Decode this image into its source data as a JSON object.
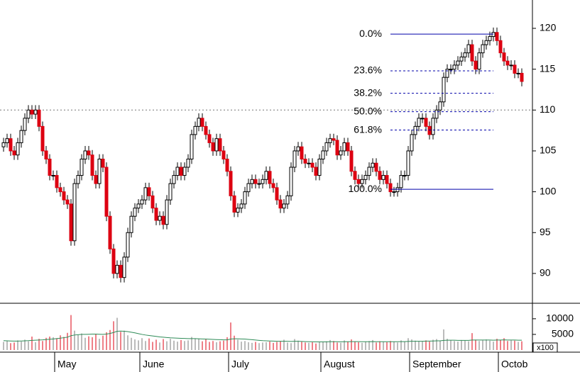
{
  "chart_data": {
    "type": "candlestick",
    "open": [
      105.5,
      106,
      106.5,
      105,
      104.5,
      106,
      107.5,
      109,
      110,
      109.5,
      110,
      108,
      105,
      104,
      102,
      102,
      100.5,
      100,
      99,
      98.5,
      94,
      101,
      102,
      104,
      105,
      104.5,
      102,
      101,
      104,
      103,
      97,
      93,
      90,
      91,
      89.5,
      92,
      95,
      97,
      98,
      98.5,
      99,
      100.5,
      99.5,
      98,
      96.5,
      97,
      96,
      99,
      101,
      102,
      103,
      102,
      103,
      104,
      107,
      108,
      109,
      108,
      107,
      106,
      105,
      106.5,
      105,
      104,
      102.5,
      99.5,
      97.5,
      98,
      98.5,
      100,
      101,
      101.5,
      101,
      101,
      101.5,
      102.5,
      101,
      100.5,
      99,
      98,
      98.5,
      99.5,
      103,
      105,
      105.5,
      104,
      103.5,
      103.5,
      103,
      102,
      104,
      105,
      106,
      106.5,
      106.3,
      104.5,
      105,
      106,
      105,
      102.5,
      101.5,
      101,
      101.5,
      102,
      103,
      103.5,
      102.5,
      101.5,
      102,
      101,
      100,
      100,
      100.5,
      102,
      102,
      105,
      107,
      108,
      109,
      109,
      108,
      107,
      109,
      110,
      111,
      114,
      115,
      115,
      115.5,
      116,
      116.5,
      117,
      118,
      116,
      115,
      117,
      118,
      118.5,
      119,
      119.5,
      118.5,
      117,
      116,
      115.5,
      115.5,
      114.5,
      114.5
    ],
    "high": [
      106.6,
      107.1,
      107.1,
      105.6,
      106.6,
      108.1,
      109.6,
      110.6,
      110.6,
      110.6,
      110.6,
      108.6,
      105.6,
      104.6,
      102.6,
      102.6,
      101.1,
      100.6,
      99.6,
      99.1,
      101.6,
      102.6,
      104.6,
      105.6,
      105.6,
      105.1,
      102.6,
      104.6,
      104.6,
      103.6,
      97.6,
      93.6,
      91.6,
      91.6,
      92.6,
      95.6,
      97.6,
      98.6,
      99.1,
      99.6,
      101.1,
      101.1,
      100.1,
      98.6,
      97.6,
      97.6,
      99.6,
      101.6,
      102.6,
      103.6,
      103.6,
      103.6,
      104.6,
      107.6,
      108.6,
      109.6,
      109.6,
      108.6,
      107.6,
      106.6,
      107.1,
      107.1,
      105.6,
      104.6,
      103.1,
      100.1,
      98.6,
      99.1,
      100.6,
      101.6,
      102.1,
      102.1,
      101.6,
      102.1,
      103.1,
      103.1,
      101.6,
      101.1,
      99.6,
      99.1,
      100.1,
      103.6,
      105.6,
      106.1,
      106.1,
      104.6,
      104.1,
      104.1,
      103.6,
      104.6,
      105.6,
      106.6,
      107.1,
      107.1,
      106.9,
      105.6,
      106.6,
      106.6,
      105.6,
      103.1,
      102.1,
      102.1,
      102.6,
      103.6,
      104.1,
      104.1,
      103.1,
      102.6,
      102.6,
      101.6,
      100.6,
      101.1,
      102.6,
      102.6,
      105.6,
      107.6,
      108.6,
      109.6,
      109.6,
      109.6,
      108.6,
      109.6,
      110.6,
      111.6,
      114.6,
      115.6,
      115.6,
      116.1,
      116.6,
      117.1,
      117.6,
      118.6,
      118.6,
      116.6,
      117.6,
      118.6,
      119.1,
      119.6,
      120.1,
      120.1,
      119.1,
      117.6,
      116.6,
      116.1,
      116.1,
      115.1,
      115.1
    ],
    "low": [
      104.9,
      105.4,
      104.4,
      103.9,
      103.9,
      105.4,
      106.9,
      108.4,
      108.9,
      108.9,
      107.4,
      104.4,
      103.4,
      101.4,
      101.4,
      99.9,
      99.4,
      98.4,
      97.9,
      93.4,
      93.4,
      100.4,
      101.4,
      103.4,
      103.9,
      101.4,
      100.4,
      100.4,
      102.4,
      96.4,
      92.4,
      89.4,
      89.4,
      88.9,
      88.9,
      91.4,
      94.4,
      96.4,
      97.4,
      97.9,
      98.4,
      98.9,
      97.4,
      95.9,
      95.9,
      95.4,
      95.4,
      98.4,
      100.4,
      101.4,
      101.4,
      101.4,
      102.4,
      103.4,
      106.4,
      107.4,
      107.4,
      106.4,
      105.4,
      104.4,
      104.4,
      104.4,
      103.4,
      101.9,
      98.9,
      96.9,
      96.9,
      97.4,
      97.9,
      99.4,
      100.4,
      100.4,
      100.4,
      100.4,
      100.9,
      100.4,
      99.9,
      98.4,
      97.4,
      97.4,
      97.9,
      98.9,
      102.4,
      104.4,
      103.4,
      102.9,
      102.9,
      102.4,
      101.4,
      101.4,
      103.4,
      104.4,
      105.4,
      105.7,
      103.9,
      103.9,
      104.4,
      104.4,
      101.9,
      100.9,
      100.4,
      100.4,
      100.9,
      101.4,
      102.4,
      101.9,
      100.9,
      100.9,
      100.4,
      99.4,
      99.4,
      99.4,
      99.9,
      101.4,
      101.4,
      104.4,
      106.4,
      107.4,
      108.4,
      107.4,
      106.4,
      106.4,
      108.4,
      109.4,
      110.4,
      113.4,
      114.4,
      114.4,
      114.9,
      115.4,
      115.9,
      116.4,
      115.4,
      114.4,
      114.4,
      116.4,
      117.4,
      117.9,
      118.4,
      117.9,
      116.4,
      115.4,
      114.9,
      114.9,
      113.9,
      113.9,
      112.9
    ],
    "close": [
      106,
      106.5,
      105,
      104.5,
      106,
      107.5,
      109,
      110,
      109.5,
      110,
      108,
      105,
      104,
      102,
      102,
      100.5,
      100,
      99,
      98.5,
      94,
      101,
      102,
      104,
      105,
      104.5,
      102,
      101,
      104,
      103,
      97,
      93,
      90,
      91,
      89.5,
      92,
      95,
      97,
      98,
      98.5,
      99,
      100.5,
      99.5,
      98,
      96.5,
      97,
      96,
      99,
      101,
      102,
      103,
      102,
      103,
      104,
      107,
      108,
      109,
      108,
      107,
      106,
      105,
      106.5,
      105,
      104,
      102.5,
      99.5,
      97.5,
      98,
      98.5,
      100,
      101,
      101.5,
      101,
      101,
      101.5,
      102.5,
      101,
      100.5,
      99,
      98,
      98.5,
      99.5,
      103,
      105,
      105.5,
      104,
      103.5,
      103.5,
      103,
      102,
      104,
      105,
      106,
      106.5,
      106.3,
      104.5,
      105,
      106,
      105,
      102.5,
      101.5,
      101,
      101.5,
      102,
      103,
      103.5,
      102.5,
      101.5,
      102,
      101,
      100,
      100,
      100.5,
      102,
      102,
      105,
      107,
      108,
      109,
      109,
      108,
      107,
      109,
      110,
      111,
      114,
      115,
      115,
      115.5,
      116,
      116.5,
      117,
      118,
      116,
      115,
      117,
      118,
      118.5,
      119,
      119.5,
      118.5,
      117,
      116,
      115.5,
      115.5,
      114.5,
      114.5,
      113.5
    ],
    "up_color": "#ffffff",
    "down_color": "#dd0011",
    "ylim": [
      86.35,
      123.47
    ],
    "yticks": [
      90,
      95,
      100,
      105,
      110,
      115,
      120
    ],
    "ref_line": 110,
    "xticks": [
      {
        "value": 15,
        "label": "May"
      },
      {
        "value": 39,
        "label": "June"
      },
      {
        "value": 64,
        "label": "July"
      },
      {
        "value": 90,
        "label": "August"
      },
      {
        "value": 115,
        "label": "September"
      },
      {
        "value": 140,
        "label": "Octob"
      }
    ],
    "fib": {
      "start": 109,
      "end": 138,
      "color": "#0000aa",
      "levels": [
        {
          "label": "0.0%",
          "value": 119.3,
          "style": "solid"
        },
        {
          "label": "23.6%",
          "value": 114.8,
          "style": "dashed"
        },
        {
          "label": "38.2%",
          "value": 112.05,
          "style": "dashed"
        },
        {
          "label": "50.0%",
          "value": 109.8,
          "style": "dashed"
        },
        {
          "label": "61.8%",
          "value": 107.55,
          "style": "dashed"
        },
        {
          "label": "100.0%",
          "value": 100.3,
          "style": "solid"
        }
      ]
    },
    "volume": {
      "values": [
        2600,
        2900,
        2200,
        2400,
        3100,
        2700,
        3300,
        2800,
        4300,
        2500,
        3600,
        2900,
        3900,
        4300,
        4100,
        3800,
        4700,
        4200,
        5500,
        11200,
        6200,
        4800,
        5300,
        3900,
        4400,
        4100,
        5200,
        3600,
        4600,
        5700,
        6400,
        9200,
        10300,
        5800,
        6200,
        4700,
        3900,
        3400,
        3100,
        3800,
        2900,
        3700,
        2600,
        3300,
        2400,
        3500,
        2800,
        3600,
        3000,
        2700,
        3200,
        2900,
        3100,
        4200,
        3700,
        3500,
        2800,
        3400,
        2600,
        2900,
        2500,
        2800,
        3000,
        4100,
        8800,
        4600,
        3300,
        2700,
        2900,
        2500,
        2300,
        2600,
        2200,
        2400,
        2500,
        2700,
        2300,
        2600,
        2800,
        3300,
        2400,
        2200,
        3500,
        3000,
        2600,
        2400,
        2300,
        2500,
        2100,
        2700,
        2600,
        2800,
        3200,
        2900,
        2400,
        2300,
        3100,
        2600,
        3400,
        2700,
        2500,
        2300,
        2600,
        2900,
        3200,
        2400,
        2800,
        2600,
        2500,
        2900,
        2700,
        2400,
        3100,
        2600,
        3800,
        3400,
        3000,
        2900,
        2800,
        3100,
        2700,
        3300,
        3500,
        3000,
        6600,
        3600,
        3100,
        2900,
        2700,
        3200,
        3000,
        2800,
        5400,
        3300,
        2900,
        3100,
        3400,
        3000,
        2700,
        3600,
        3200,
        3800,
        2900,
        3100,
        3000,
        2600,
        2800
      ],
      "up_color": "#777777",
      "down_color": "#dd0011",
      "ma": {
        "color": "#2e8b57",
        "values": [
          3000,
          2950,
          2900,
          2850,
          2850,
          2900,
          2950,
          3000,
          3100,
          3150,
          3200,
          3250,
          3350,
          3450,
          3550,
          3650,
          3800,
          3950,
          4100,
          4600,
          4800,
          4900,
          5000,
          5000,
          5050,
          5100,
          5100,
          5050,
          5000,
          5100,
          5300,
          5600,
          6000,
          6050,
          6000,
          5900,
          5700,
          5500,
          5250,
          5000,
          4800,
          4650,
          4500,
          4350,
          4200,
          4100,
          4000,
          3900,
          3850,
          3800,
          3750,
          3700,
          3650,
          3650,
          3650,
          3600,
          3550,
          3500,
          3450,
          3400,
          3350,
          3300,
          3250,
          3250,
          3500,
          3600,
          3600,
          3550,
          3500,
          3400,
          3300,
          3200,
          3100,
          3000,
          2950,
          2900,
          2850,
          2800,
          2800,
          2800,
          2800,
          2750,
          2800,
          2800,
          2750,
          2700,
          2650,
          2650,
          2600,
          2600,
          2600,
          2600,
          2650,
          2650,
          2650,
          2600,
          2650,
          2650,
          2700,
          2700,
          2700,
          2650,
          2650,
          2650,
          2700,
          2650,
          2650,
          2650,
          2650,
          2650,
          2650,
          2650,
          2700,
          2700,
          2750,
          2800,
          2800,
          2800,
          2800,
          2850,
          2850,
          2900,
          2950,
          2950,
          3100,
          3150,
          3150,
          3150,
          3100,
          3100,
          3100,
          3100,
          3200,
          3200,
          3200,
          3200,
          3200,
          3200,
          3150,
          3200,
          3200,
          3250,
          3200,
          3200,
          3200,
          3150,
          3150
        ]
      },
      "ylim": [
        0,
        14500
      ],
      "yticks": [
        5000,
        10000
      ],
      "unit_label": "x100"
    }
  }
}
